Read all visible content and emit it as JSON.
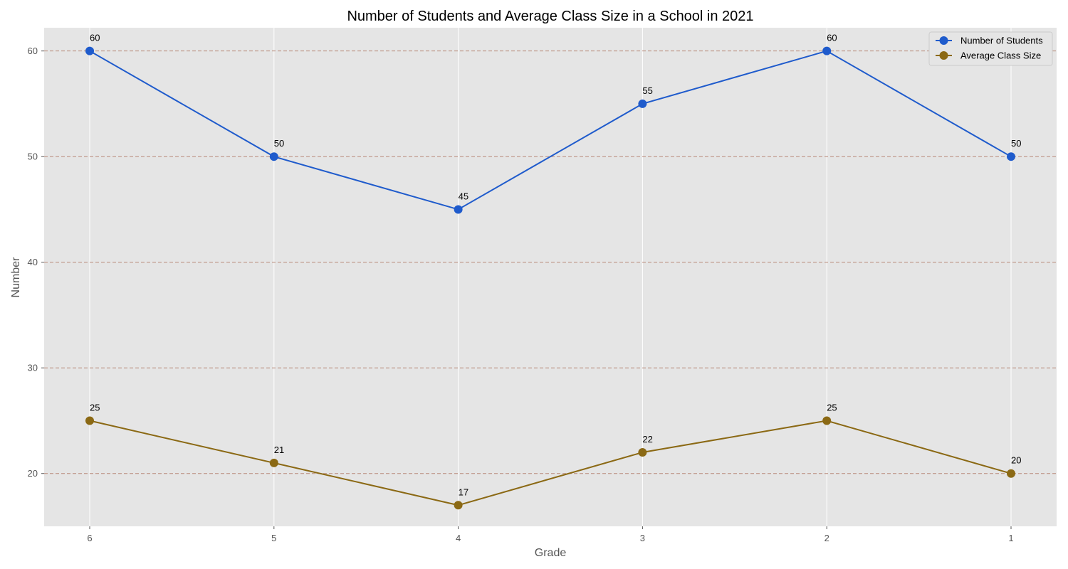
{
  "chart_data": {
    "type": "line",
    "title": "Number of Students and Average Class Size in a School in 2021",
    "xlabel": "Grade",
    "ylabel": "Number",
    "categories": [
      "6",
      "5",
      "4",
      "3",
      "2",
      "1"
    ],
    "yticks": [
      20,
      30,
      40,
      50,
      60
    ],
    "ylim": [
      15,
      62.2
    ],
    "grid": "y-dashed, x-solid",
    "legend_position": "top-right",
    "series": [
      {
        "name": "Number of Students",
        "color": "#1f5bcc",
        "values": [
          60,
          50,
          45,
          55,
          60,
          50
        ]
      },
      {
        "name": "Average Class Size",
        "color": "#8b6914",
        "values": [
          25,
          21,
          17,
          22,
          25,
          20
        ]
      }
    ]
  },
  "colors": {
    "plot_background": "#e5e5e5",
    "horizontal_grid": "#b88a7a",
    "vertical_grid": "#ffffff"
  }
}
